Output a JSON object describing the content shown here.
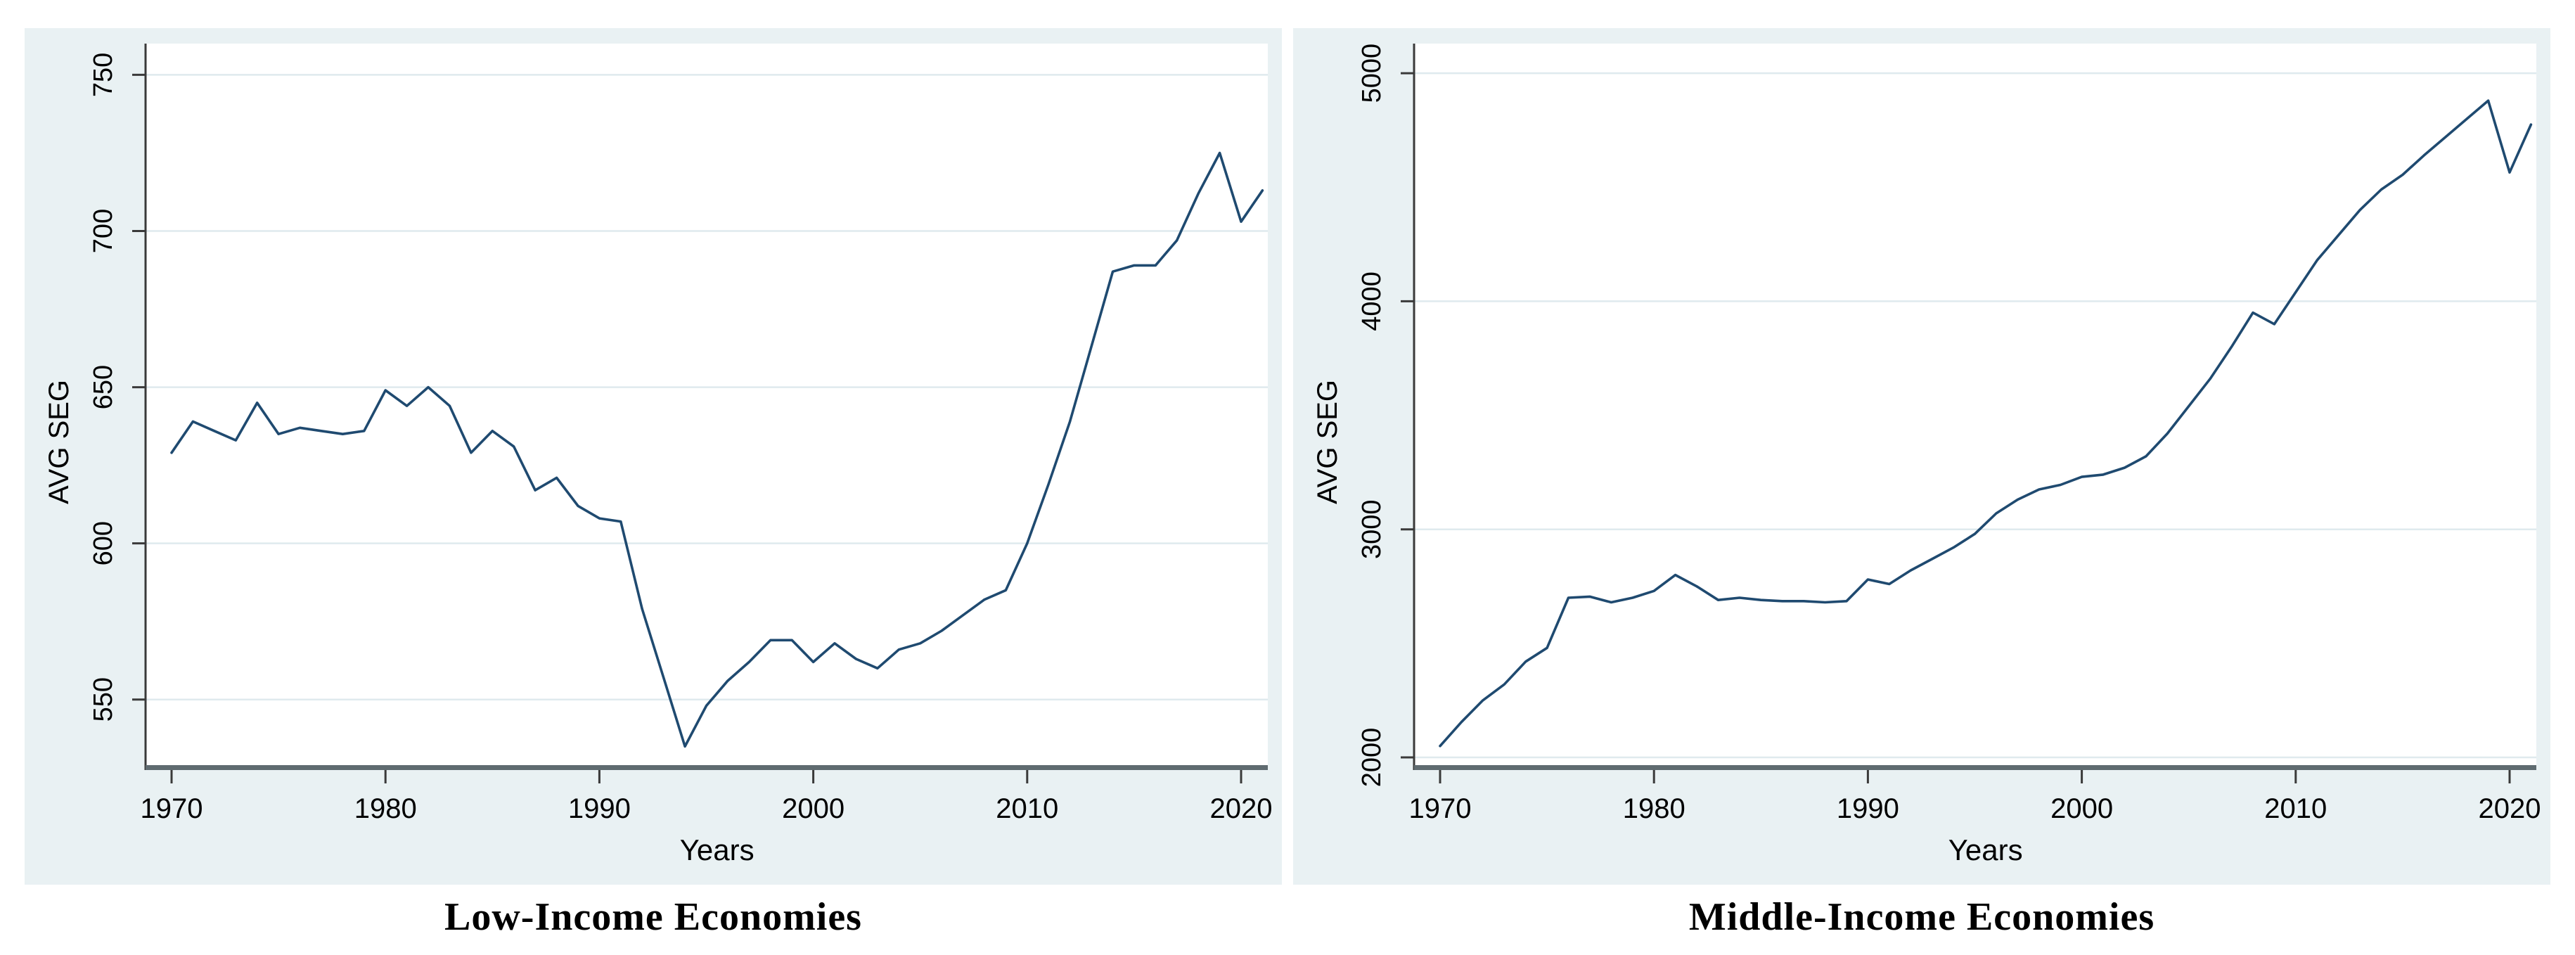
{
  "colors": {
    "panel_background": "#e9f1f3",
    "plot_background": "#ffffff",
    "gridline": "#dfeaee",
    "y_axis": "#3a3a3a",
    "x_axis_band": "#5f6b70",
    "tick_text": "#000000",
    "series_line": "#1f4a70"
  },
  "chart_data": [
    {
      "type": "line",
      "title": "Low-Income Economies",
      "xlabel": "Years",
      "ylabel": "AVG SEG",
      "x_range": [
        1970,
        2021
      ],
      "x_ticks": [
        1970,
        1980,
        1990,
        2000,
        2010,
        2020
      ],
      "y_ticks": [
        550,
        600,
        650,
        700,
        750
      ],
      "ylim": [
        529,
        760
      ],
      "grid": true,
      "legend": "none",
      "values": [
        629,
        639,
        636,
        633,
        645,
        635,
        637,
        636,
        635,
        636,
        649,
        644,
        650,
        644,
        629,
        636,
        631,
        617,
        621,
        612,
        608,
        607,
        579,
        557,
        535,
        548,
        556,
        562,
        569,
        569,
        562,
        568,
        563,
        560,
        566,
        568,
        572,
        577,
        582,
        585,
        600,
        619,
        639,
        663,
        687,
        689,
        689,
        697,
        712,
        725,
        703,
        713
      ]
    },
    {
      "type": "line",
      "title": "Middle-Income Economies",
      "xlabel": "Years",
      "ylabel": "AVG SEG",
      "x_range": [
        1970,
        2021
      ],
      "x_ticks": [
        1970,
        1980,
        1990,
        2000,
        2010,
        2020
      ],
      "y_ticks": [
        2000,
        3000,
        4000,
        5000
      ],
      "ylim": [
        1966,
        5130
      ],
      "grid": true,
      "legend": "none",
      "values": [
        2050,
        2155,
        2250,
        2320,
        2420,
        2480,
        2700,
        2705,
        2680,
        2700,
        2730,
        2800,
        2750,
        2690,
        2700,
        2690,
        2685,
        2685,
        2680,
        2685,
        2780,
        2760,
        2820,
        2870,
        2920,
        2980,
        3070,
        3130,
        3175,
        3195,
        3230,
        3240,
        3270,
        3320,
        3420,
        3540,
        3660,
        3800,
        3950,
        3900,
        4040,
        4180,
        4290,
        4400,
        4490,
        4555,
        4640,
        4720,
        4800,
        4880,
        4565,
        4775
      ]
    }
  ]
}
